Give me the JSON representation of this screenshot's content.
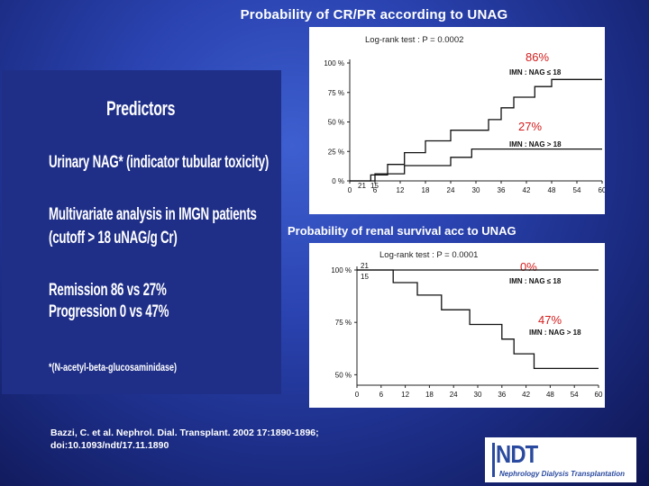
{
  "slide": {
    "title": "Probability of CR/PR according to  UNAG",
    "subtitle2": "Probability of  renal survival acc to UNAG",
    "citation_line1": "Bazzi, C. et al. Nephrol. Dial. Transplant. 2002 17:1890-1896;",
    "citation_line2": "doi:10.1093/ndt/17.11.1890"
  },
  "predictors": {
    "heading": "Predictors",
    "line1": "Urinary NAG* (indicator tubular toxicity)",
    "line2": "Multivariate analysis in IMGN patients",
    "line3": "(cutoff > 18 uNAG/g Cr)",
    "line4": "Remission 86 vs 27%",
    "line5": "Progression 0 vs 47%",
    "footnote": "*(N-acetyl-beta-glucosaminidase)"
  },
  "logo": {
    "word": "NDT",
    "sub": "Nephrology Dialysis Transplantation"
  },
  "colors": {
    "background": "#2a43b0",
    "predictors_panel": "#1f2f88",
    "percent_label": "#d41c1c",
    "logo_blue": "#2a4aa0"
  },
  "chart_data": [
    {
      "type": "line",
      "step": true,
      "logrank": "Log-rank test : P = 0.0002",
      "x_ticks": [
        "0",
        "6",
        "12",
        "18",
        "24",
        "30",
        "36",
        "42",
        "48",
        "54",
        "60"
      ],
      "y_ticks": [
        "0 %",
        "25 %",
        "50 %",
        "75 %",
        "100 %"
      ],
      "xlim": [
        0,
        60
      ],
      "ylim": [
        0,
        100
      ],
      "n_at_risk": [
        "21",
        "15"
      ],
      "series": [
        {
          "name": "IMN : NAG ≤ 18",
          "percent_label": "86%",
          "x": [
            0,
            5,
            5,
            9,
            9,
            13,
            13,
            18,
            18,
            24,
            24,
            33,
            33,
            36,
            36,
            39,
            39,
            44,
            44,
            48,
            48,
            60
          ],
          "y": [
            0,
            0,
            5,
            5,
            14,
            14,
            24,
            24,
            34,
            34,
            43,
            43,
            52,
            52,
            62,
            62,
            71,
            71,
            80,
            80,
            86,
            86
          ]
        },
        {
          "name": "IMN : NAG > 18",
          "percent_label": "27%",
          "x": [
            0,
            6,
            6,
            13,
            13,
            24,
            24,
            29,
            29,
            44,
            44,
            60
          ],
          "y": [
            0,
            0,
            6,
            6,
            13,
            13,
            20,
            20,
            27,
            27,
            27,
            27
          ]
        }
      ]
    },
    {
      "type": "line",
      "step": true,
      "logrank": "Log-rank test : P = 0.0001",
      "x_ticks": [
        "0",
        "6",
        "12",
        "18",
        "24",
        "30",
        "36",
        "42",
        "48",
        "54",
        "60"
      ],
      "y_ticks": [
        "50 %",
        "75 %",
        "100 %"
      ],
      "xlim": [
        0,
        60
      ],
      "ylim": [
        45,
        100
      ],
      "n_at_risk": [
        "21",
        "15"
      ],
      "series": [
        {
          "name": "IMN : NAG ≤ 18",
          "percent_label": "0%",
          "x": [
            0,
            60
          ],
          "y": [
            100,
            100
          ]
        },
        {
          "name": "IMN : NAG > 18",
          "percent_label": "47%",
          "x": [
            0,
            9,
            9,
            15,
            15,
            21,
            21,
            28,
            28,
            36,
            36,
            39,
            39,
            44,
            44,
            60
          ],
          "y": [
            100,
            100,
            94,
            94,
            88,
            88,
            81,
            81,
            74,
            74,
            67,
            67,
            60,
            60,
            53,
            53
          ]
        }
      ]
    }
  ]
}
